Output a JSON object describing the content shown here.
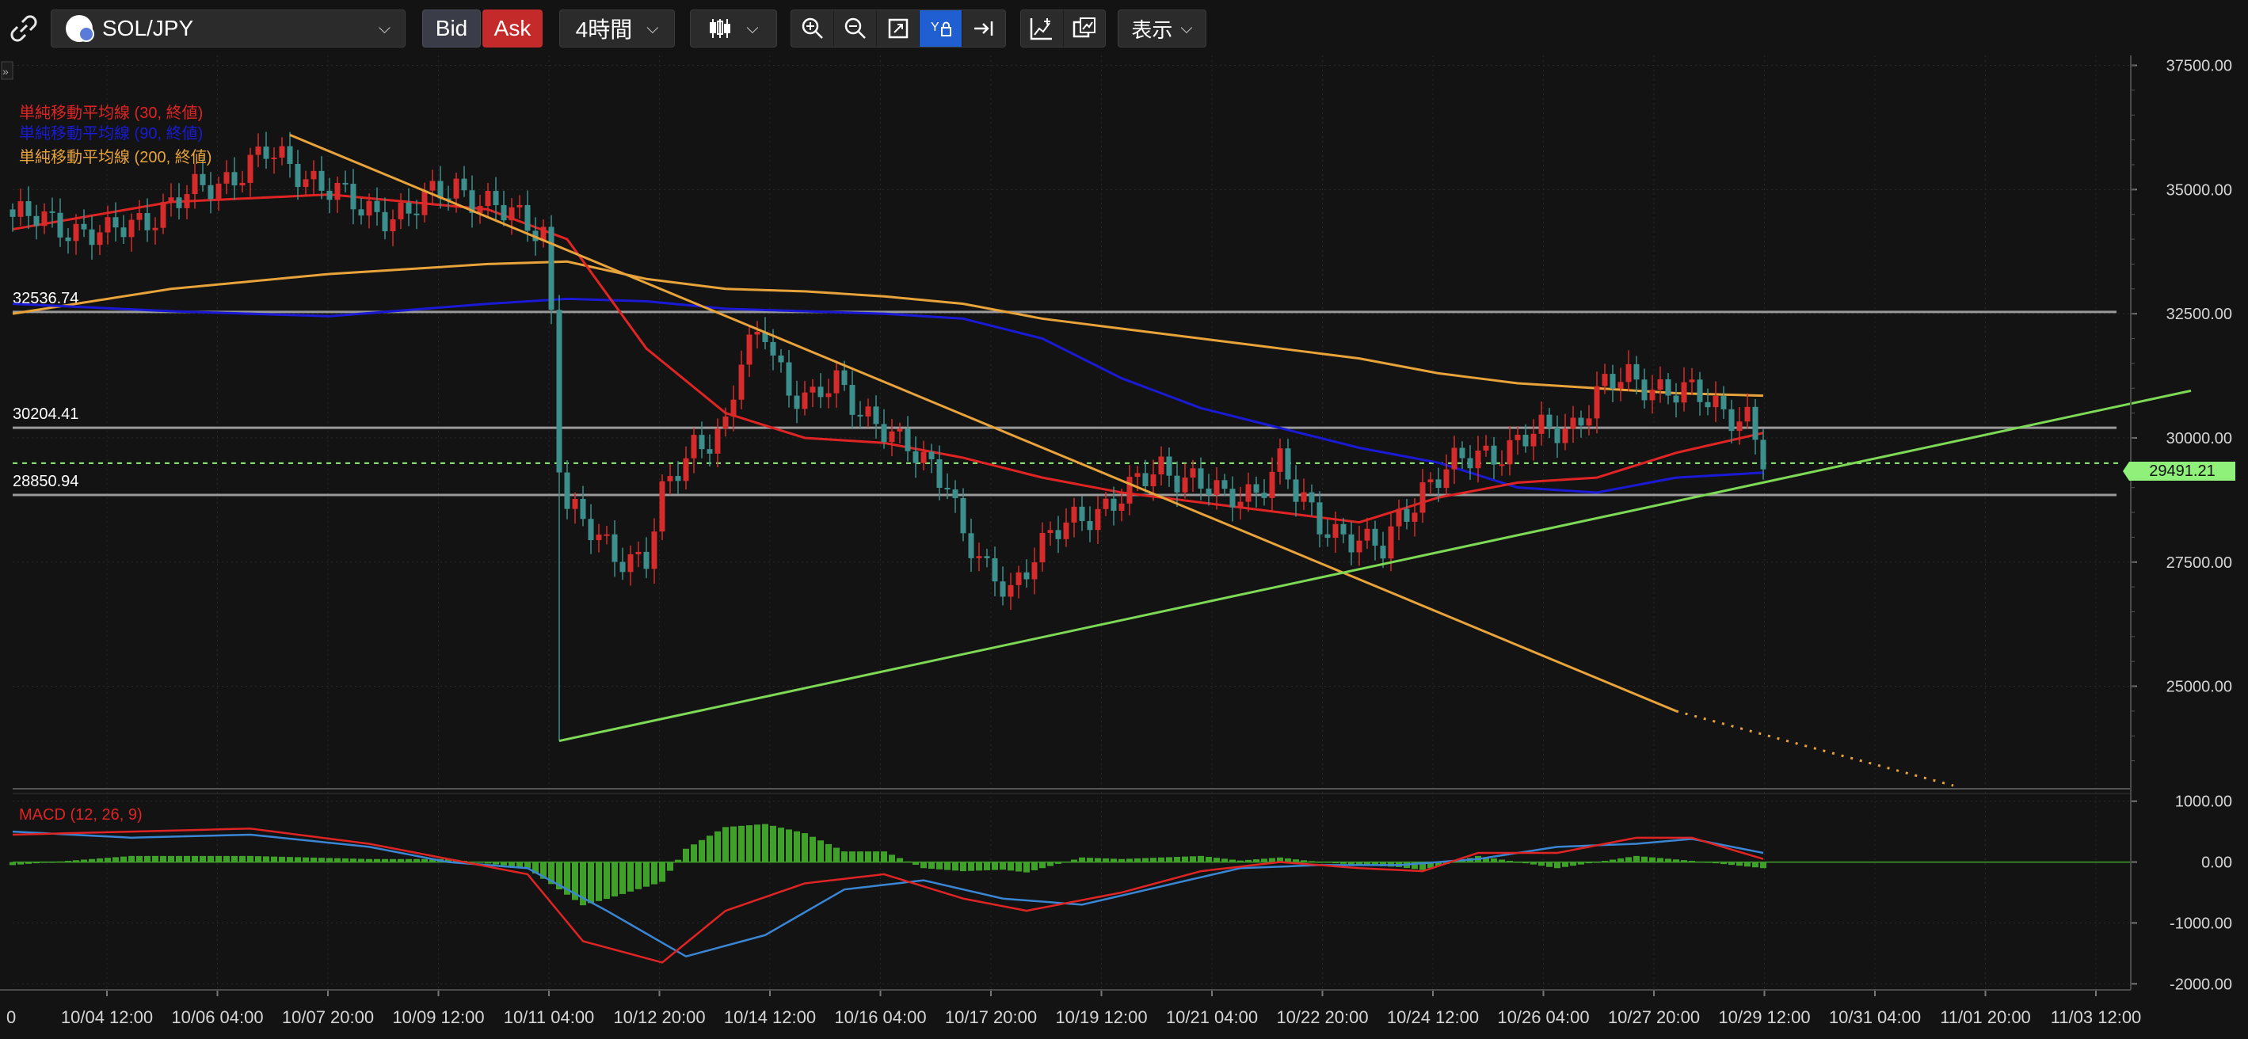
{
  "toolbar": {
    "symbol": "SOL/JPY",
    "bid_label": "Bid",
    "ask_label": "Ask",
    "interval": "4時間",
    "view_label": "表示"
  },
  "indicators": {
    "sma30": "単純移動平均線 (30, 終値)",
    "sma90": "単純移動平均線 (90, 終値)",
    "sma200": "単純移動平均線 (200, 終値)",
    "macd": "MACD (12, 26, 9)"
  },
  "colors": {
    "up": "#d62b2b",
    "down": "#3c8f8c",
    "sma30": "#e02424",
    "sma90": "#1a1ad6",
    "sma200": "#e8a33a",
    "trendline_green": "#7ed957",
    "price_badge": "#8ff07a",
    "macd_line": "#e02424",
    "signal_line": "#3a86d4",
    "histogram": "#3fa02a"
  },
  "chart_data": [
    {
      "type": "candlestick",
      "symbol": "SOL/JPY",
      "timeframe": "4時間",
      "y_axis_ticks": [
        "37500.00",
        "35000.00",
        "32500.00",
        "30000.00",
        "27500.00",
        "25000.00"
      ],
      "ylim": [
        23000,
        37700
      ],
      "x_tick_labels": [
        "10/04 12:00",
        "10/06 04:00",
        "10/07 20:00",
        "10/09 12:00",
        "10/11 04:00",
        "10/12 20:00",
        "10/14 12:00",
        "10/16 04:00",
        "10/17 20:00",
        "10/19 12:00",
        "10/21 04:00",
        "10/22 20:00",
        "10/24 12:00",
        "10/26 04:00",
        "10/27 20:00",
        "10/29 12:00",
        "10/31 04:00",
        "11/01 20:00",
        "11/03 12:00"
      ],
      "x_axis_partial_labels": [
        "0",
        "11/03 1:"
      ],
      "current_price": "29491.21",
      "horizontal_levels": [
        {
          "label": "32536.74",
          "value": 32536.74
        },
        {
          "label": "30204.41",
          "value": 30204.41
        },
        {
          "label": "28850.94",
          "value": 28850.94
        }
      ],
      "close_waypoints": [
        [
          0,
          34450
        ],
        [
          6,
          34300
        ],
        [
          12,
          34050
        ],
        [
          18,
          34550
        ],
        [
          26,
          35150
        ],
        [
          32,
          35700
        ],
        [
          38,
          35250
        ],
        [
          44,
          34550
        ],
        [
          50,
          34550
        ],
        [
          56,
          35100
        ],
        [
          62,
          34500
        ],
        [
          67,
          34200
        ],
        [
          68,
          32550
        ],
        [
          69,
          29600
        ],
        [
          70,
          28650
        ],
        [
          72,
          28200
        ],
        [
          76,
          27700
        ],
        [
          80,
          27550
        ],
        [
          82,
          28750
        ],
        [
          86,
          29900
        ],
        [
          90,
          30200
        ],
        [
          92,
          31500
        ],
        [
          95,
          32200
        ],
        [
          98,
          31000
        ],
        [
          101,
          30700
        ],
        [
          104,
          31100
        ],
        [
          108,
          30500
        ],
        [
          112,
          29800
        ],
        [
          116,
          29500
        ],
        [
          118,
          29200
        ],
        [
          120,
          28000
        ],
        [
          123,
          27200
        ],
        [
          126,
          27000
        ],
        [
          129,
          27700
        ],
        [
          133,
          28200
        ],
        [
          137,
          28600
        ],
        [
          141,
          28900
        ],
        [
          145,
          29400
        ],
        [
          149,
          29200
        ],
        [
          153,
          28700
        ],
        [
          157,
          29000
        ],
        [
          160,
          29500
        ],
        [
          162,
          28800
        ],
        [
          165,
          28300
        ],
        [
          168,
          28100
        ],
        [
          171,
          27800
        ],
        [
          173,
          27700
        ],
        [
          175,
          28400
        ],
        [
          178,
          29000
        ],
        [
          181,
          29300
        ],
        [
          185,
          29700
        ],
        [
          189,
          29800
        ],
        [
          193,
          30100
        ],
        [
          197,
          30300
        ],
        [
          201,
          31000
        ],
        [
          204,
          31200
        ],
        [
          207,
          31100
        ],
        [
          210,
          30900
        ],
        [
          213,
          30800
        ],
        [
          216,
          30600
        ],
        [
          219,
          30400
        ],
        [
          221,
          29500
        ]
      ],
      "sma30_waypoints": [
        [
          0,
          34200
        ],
        [
          20,
          34750
        ],
        [
          40,
          34900
        ],
        [
          60,
          34600
        ],
        [
          70,
          34000
        ],
        [
          80,
          31800
        ],
        [
          90,
          30500
        ],
        [
          100,
          30000
        ],
        [
          110,
          29900
        ],
        [
          120,
          29600
        ],
        [
          130,
          29200
        ],
        [
          140,
          28900
        ],
        [
          150,
          28700
        ],
        [
          160,
          28500
        ],
        [
          170,
          28300
        ],
        [
          180,
          28800
        ],
        [
          190,
          29100
        ],
        [
          200,
          29200
        ],
        [
          210,
          29700
        ],
        [
          221,
          30100
        ]
      ],
      "sma90_waypoints": [
        [
          0,
          32700
        ],
        [
          20,
          32550
        ],
        [
          40,
          32450
        ],
        [
          60,
          32700
        ],
        [
          70,
          32800
        ],
        [
          80,
          32750
        ],
        [
          90,
          32600
        ],
        [
          100,
          32550
        ],
        [
          110,
          32500
        ],
        [
          120,
          32400
        ],
        [
          130,
          32000
        ],
        [
          140,
          31200
        ],
        [
          150,
          30600
        ],
        [
          160,
          30200
        ],
        [
          170,
          29800
        ],
        [
          180,
          29500
        ],
        [
          190,
          29000
        ],
        [
          200,
          28900
        ],
        [
          210,
          29200
        ],
        [
          221,
          29300
        ]
      ],
      "sma200_waypoints": [
        [
          0,
          32500
        ],
        [
          20,
          33000
        ],
        [
          40,
          33300
        ],
        [
          60,
          33500
        ],
        [
          70,
          33550
        ],
        [
          80,
          33200
        ],
        [
          90,
          33000
        ],
        [
          100,
          32950
        ],
        [
          110,
          32850
        ],
        [
          120,
          32700
        ],
        [
          130,
          32400
        ],
        [
          140,
          32200
        ],
        [
          150,
          32000
        ],
        [
          160,
          31800
        ],
        [
          170,
          31600
        ],
        [
          180,
          31300
        ],
        [
          190,
          31100
        ],
        [
          200,
          31000
        ],
        [
          210,
          30900
        ],
        [
          221,
          30850
        ]
      ],
      "trendlines": [
        {
          "name": "descending",
          "color": "#e8a33a",
          "from": [
            35,
            36100
          ],
          "to": [
            210,
            24500
          ],
          "dotted_to": [
            245,
            23000
          ]
        },
        {
          "name": "ascending",
          "color": "#7ed957",
          "from": [
            69,
            23900
          ],
          "to": [
            275,
            30950
          ]
        }
      ]
    },
    {
      "type": "macd",
      "label": "MACD (12, 26, 9)",
      "y_axis_ticks": [
        "1000.00",
        "0.00",
        "-1000.00",
        "-2000.00"
      ],
      "ylim": [
        -2100,
        1100
      ],
      "macd_waypoints": [
        [
          0,
          450
        ],
        [
          15,
          500
        ],
        [
          30,
          550
        ],
        [
          45,
          300
        ],
        [
          55,
          50
        ],
        [
          65,
          -200
        ],
        [
          72,
          -1300
        ],
        [
          82,
          -1650
        ],
        [
          90,
          -800
        ],
        [
          100,
          -350
        ],
        [
          110,
          -200
        ],
        [
          120,
          -600
        ],
        [
          128,
          -800
        ],
        [
          140,
          -500
        ],
        [
          150,
          -150
        ],
        [
          160,
          0
        ],
        [
          170,
          -100
        ],
        [
          178,
          -150
        ],
        [
          185,
          150
        ],
        [
          195,
          150
        ],
        [
          205,
          400
        ],
        [
          212,
          400
        ],
        [
          221,
          50
        ]
      ],
      "signal_waypoints": [
        [
          0,
          500
        ],
        [
          15,
          400
        ],
        [
          30,
          450
        ],
        [
          45,
          250
        ],
        [
          55,
          0
        ],
        [
          65,
          -100
        ],
        [
          75,
          -800
        ],
        [
          85,
          -1550
        ],
        [
          95,
          -1200
        ],
        [
          105,
          -450
        ],
        [
          115,
          -300
        ],
        [
          125,
          -600
        ],
        [
          135,
          -700
        ],
        [
          145,
          -400
        ],
        [
          155,
          -100
        ],
        [
          165,
          -50
        ],
        [
          175,
          -50
        ],
        [
          185,
          50
        ],
        [
          195,
          250
        ],
        [
          205,
          300
        ],
        [
          212,
          380
        ],
        [
          221,
          150
        ]
      ]
    }
  ]
}
